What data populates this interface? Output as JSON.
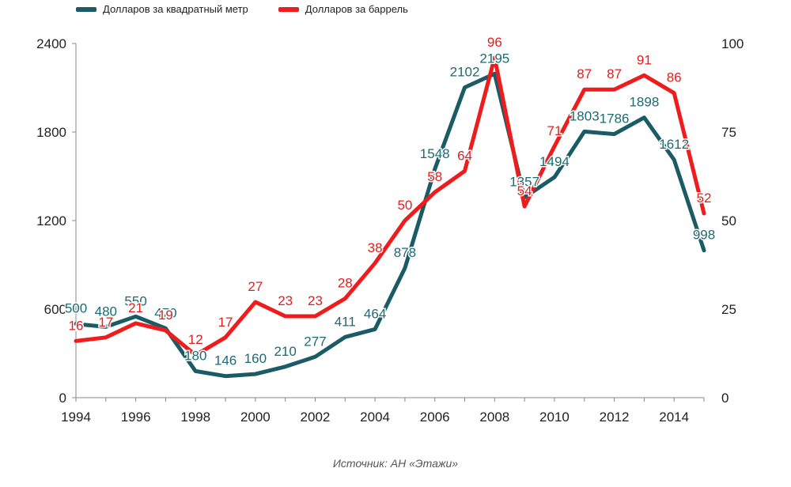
{
  "chart_data": {
    "type": "line",
    "source": "Источник: АН «Этажи»",
    "x": [
      1994,
      1995,
      1996,
      1997,
      1998,
      1999,
      2000,
      2001,
      2002,
      2003,
      2004,
      2005,
      2006,
      2007,
      2008,
      2009,
      2010,
      2011,
      2012,
      2013,
      2014,
      2015
    ],
    "x_ticks": [
      "1994",
      "1996",
      "1998",
      "2000",
      "2002",
      "2004",
      "2006",
      "2008",
      "2010",
      "2012",
      "2014"
    ],
    "y_left": {
      "min": 0,
      "max": 2400,
      "ticks": [
        "0",
        "600",
        "1200",
        "1800",
        "2400"
      ]
    },
    "y_right": {
      "min": 0,
      "max": 100,
      "ticks": [
        "0",
        "25",
        "50",
        "75",
        "100"
      ]
    },
    "legend_position": "top-left",
    "series": [
      {
        "name": "Долларов за квадратный метр",
        "axis": "left",
        "color": "#1b5b66",
        "values": [
          500,
          480,
          550,
          470,
          180,
          146,
          160,
          210,
          277,
          411,
          464,
          878,
          1548,
          2102,
          2195,
          1357,
          1494,
          1803,
          1786,
          1898,
          1612,
          998
        ],
        "labels": [
          "500",
          "480",
          "550",
          "470",
          "180",
          "146",
          "160",
          "210",
          "277",
          "411",
          "464",
          "878",
          "1548",
          "2102",
          "2195",
          "1357",
          "1494",
          "1803",
          "1786",
          "1898",
          "1612",
          "998"
        ]
      },
      {
        "name": "Долларов за баррель",
        "axis": "right",
        "color": "#ee1c1c",
        "values": [
          16,
          17,
          21,
          19,
          12,
          17,
          27,
          23,
          23,
          28,
          38,
          50,
          58,
          64,
          96,
          54,
          71,
          87,
          87,
          91,
          86,
          52
        ],
        "labels": [
          "16",
          "17",
          "21",
          "19",
          "12",
          "17",
          "27",
          "23",
          "23",
          "28",
          "38",
          "50",
          "58",
          "64",
          "96",
          "54",
          "71",
          "87",
          "87",
          "91",
          "86",
          "52"
        ]
      }
    ]
  }
}
